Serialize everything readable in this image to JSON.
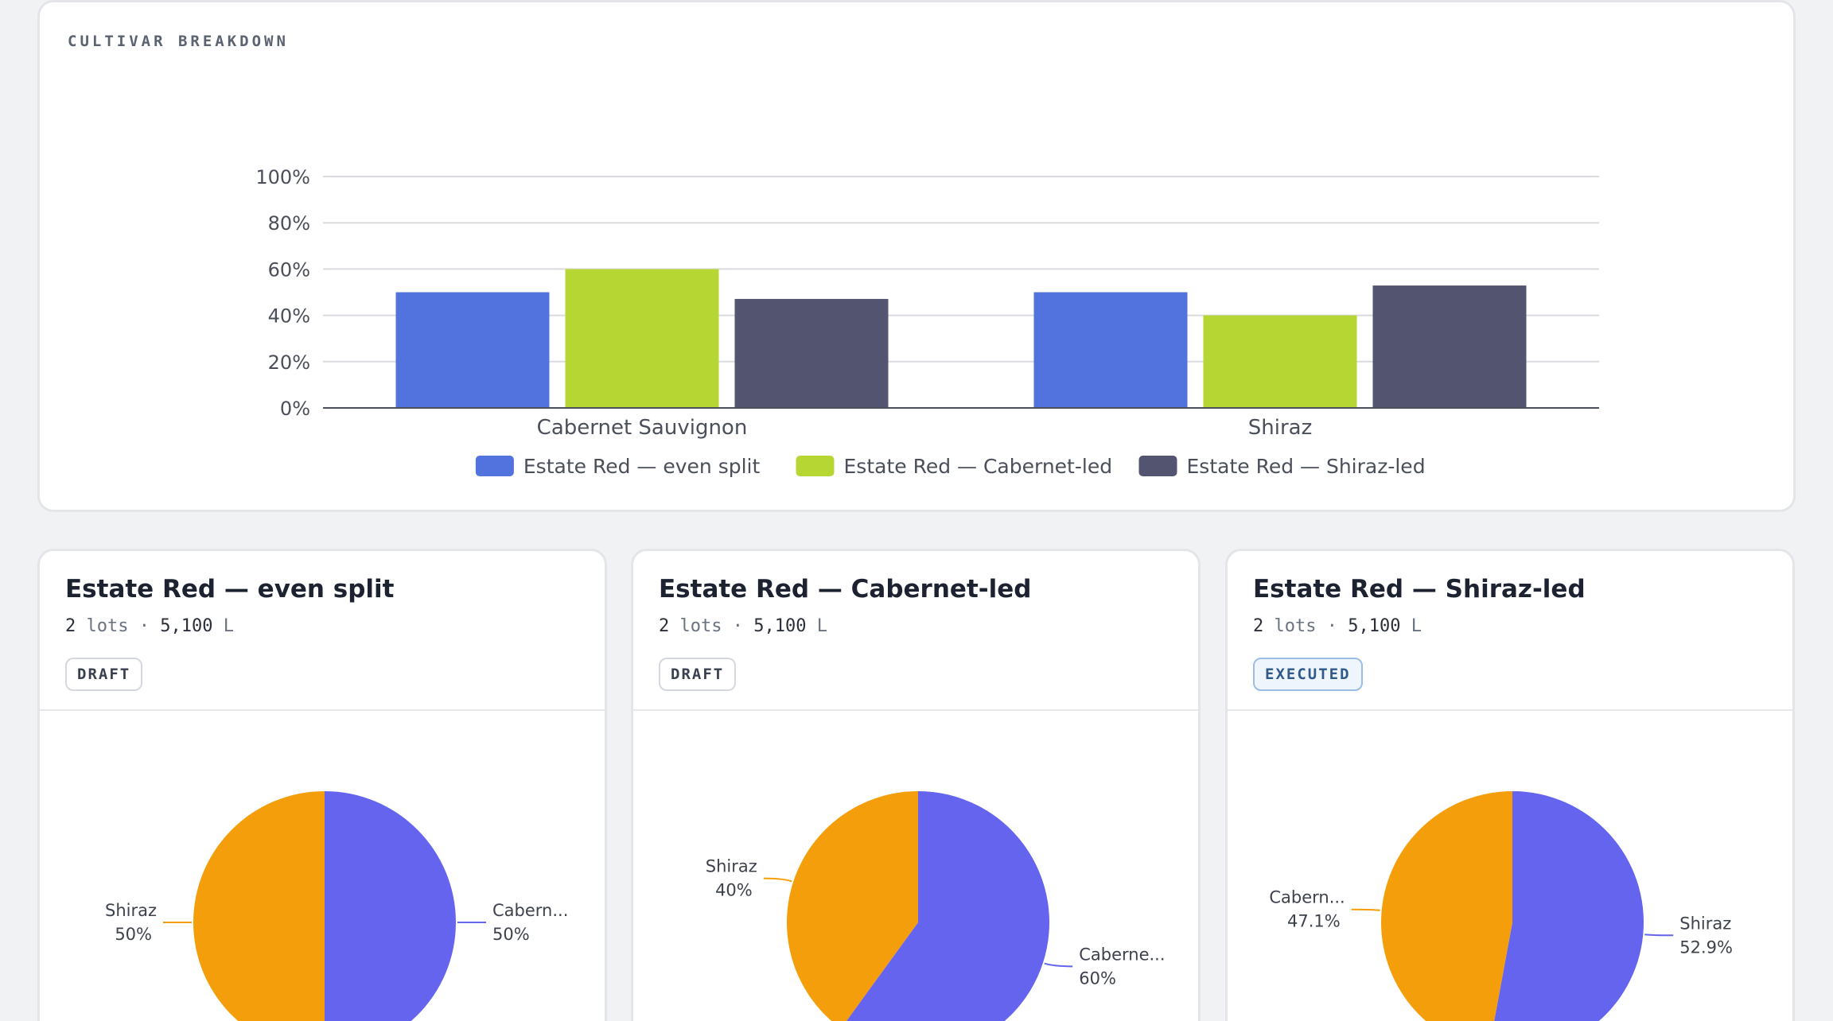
{
  "cultivar": {
    "section_label": "CULTIVAR BREAKDOWN"
  },
  "chart_data": [
    {
      "type": "bar",
      "title": "",
      "categories": [
        "Cabernet Sauvignon",
        "Shiraz"
      ],
      "series": [
        {
          "name": "Estate Red — even split",
          "color": "#5273de",
          "values": [
            50,
            50
          ]
        },
        {
          "name": "Estate Red — Cabernet-led",
          "color": "#b6d634",
          "values": [
            60,
            40
          ]
        },
        {
          "name": "Estate Red — Shiraz-led",
          "color": "#525470",
          "values": [
            47.1,
            52.9
          ]
        }
      ],
      "yticks": [
        "0%",
        "20%",
        "40%",
        "60%",
        "80%",
        "100%"
      ],
      "ylim": [
        0,
        100
      ],
      "grid": true,
      "legend": "bottom"
    },
    {
      "type": "pie",
      "slices": [
        {
          "label": "Cabern...",
          "pct_label": "50%",
          "value": 50,
          "color": "#6464ee"
        },
        {
          "label": "Shiraz",
          "pct_label": "50%",
          "value": 50,
          "color": "#f59e0b"
        }
      ]
    },
    {
      "type": "pie",
      "slices": [
        {
          "label": "Caberne...",
          "pct_label": "60%",
          "value": 60,
          "color": "#6464ee"
        },
        {
          "label": "Shiraz",
          "pct_label": "40%",
          "value": 40,
          "color": "#f59e0b"
        }
      ]
    },
    {
      "type": "pie",
      "slices": [
        {
          "label": "Shiraz",
          "pct_label": "52.9%",
          "value": 52.9,
          "color": "#6464ee"
        },
        {
          "label": "Cabern...",
          "pct_label": "47.1%",
          "value": 47.1,
          "color": "#f59e0b"
        }
      ]
    }
  ],
  "blends": [
    {
      "title": "Estate Red — even split",
      "lots": "2",
      "lots_unit": "lots",
      "sep": "·",
      "volume": "5,100",
      "volume_unit": "L",
      "status": "DRAFT"
    },
    {
      "title": "Estate Red — Cabernet-led",
      "lots": "2",
      "lots_unit": "lots",
      "sep": "·",
      "volume": "5,100",
      "volume_unit": "L",
      "status": "DRAFT"
    },
    {
      "title": "Estate Red — Shiraz-led",
      "lots": "2",
      "lots_unit": "lots",
      "sep": "·",
      "volume": "5,100",
      "volume_unit": "L",
      "status": "EXECUTED"
    }
  ]
}
